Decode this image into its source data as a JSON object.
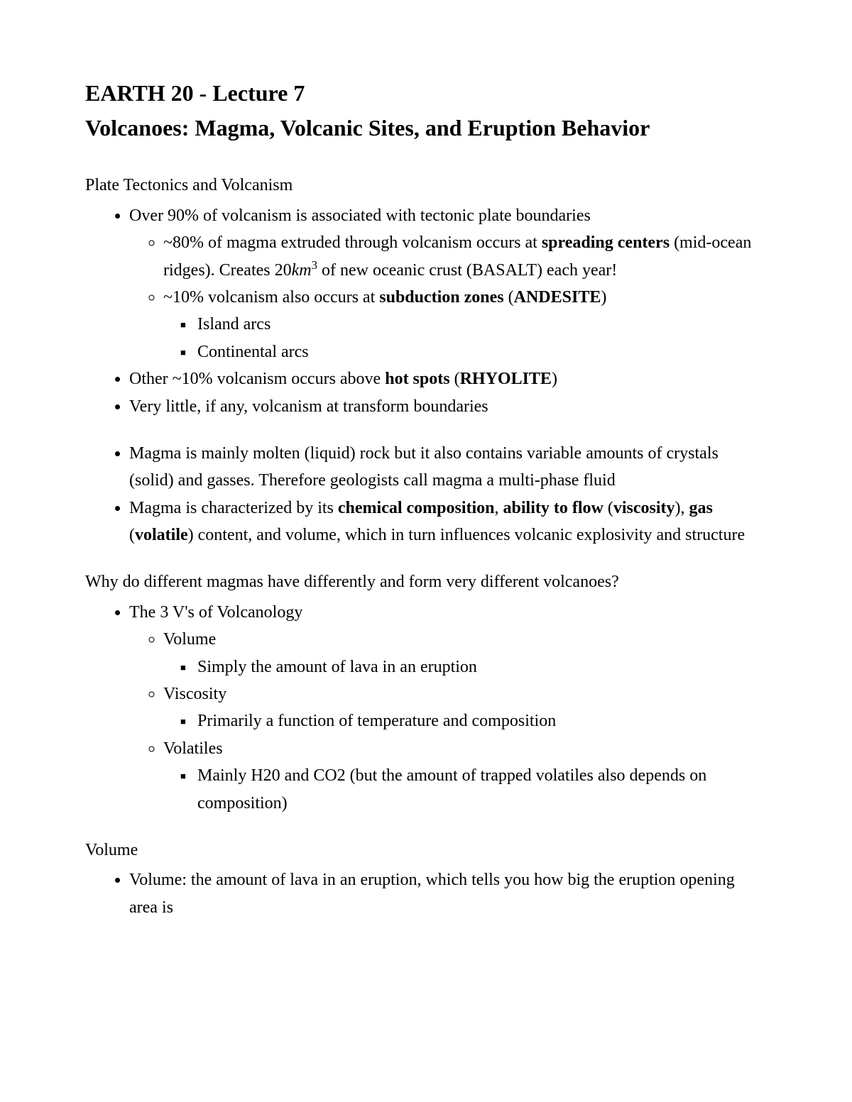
{
  "title_line1": "EARTH 20 - Lecture 7",
  "title_line2": "Volcanoes: Magma, Volcanic Sites, and Eruption Behavior",
  "colors": {
    "text": "#000000",
    "background": "#ffffff"
  },
  "typography": {
    "family": "Times New Roman",
    "heading_size_pt": 24,
    "body_size_pt": 18,
    "line_height": 1.6
  },
  "sections": {
    "s1": {
      "label": "Plate Tectonics and Volcanism",
      "b1": "Over 90% of volcanism is associated with tectonic plate boundaries",
      "b1_1_a": "~80% of magma extruded through volcanism occurs at ",
      "b1_1_b": "spreading centers",
      "b1_1_c": " (mid-ocean ridges). Creates 20",
      "b1_1_km": "km",
      "b1_1_exp": "3",
      "b1_1_d": " of new oceanic crust (BASALT) each year!",
      "b1_2_a": "~10% volcanism also occurs at ",
      "b1_2_b": "subduction zones",
      "b1_2_c": " (",
      "b1_2_d": "ANDESITE",
      "b1_2_e": ")",
      "b1_2_i": "Island arcs",
      "b1_2_ii": "Continental arcs",
      "b2_a": "Other ~10% volcanism occurs above ",
      "b2_b": "hot spots",
      "b2_c": " (",
      "b2_d": "RHYOLITE",
      "b2_e": ")",
      "b3": "Very little, if any, volcanism at transform boundaries",
      "b4": "Magma is mainly molten (liquid) rock but it also contains variable amounts of crystals (solid) and gasses. Therefore geologists call magma a multi-phase fluid",
      "b5_a": "Magma is characterized by its ",
      "b5_b": "chemical composition",
      "b5_c": ", ",
      "b5_d": "ability to flow",
      "b5_e": " (",
      "b5_f": "viscosity",
      "b5_g": "), ",
      "b5_h": "gas",
      "b5_i": " (",
      "b5_j": "volatile",
      "b5_k": ") content, and volume, which in turn influences volcanic explosivity and structure"
    },
    "s2": {
      "label": "Why do different magmas have differently and form very different volcanoes?",
      "b1": "The 3 V's of Volcanology",
      "b1_1": "Volume",
      "b1_1_i": "Simply the amount of lava in an eruption",
      "b1_2": "Viscosity",
      "b1_2_i": "Primarily a function of temperature and composition",
      "b1_3": "Volatiles",
      "b1_3_i": "Mainly H20 and CO2 (but the amount of trapped volatiles also depends on composition)"
    },
    "s3": {
      "label": "Volume",
      "b1": "Volume: the amount of lava in an eruption, which tells you how big the eruption opening area is"
    }
  }
}
